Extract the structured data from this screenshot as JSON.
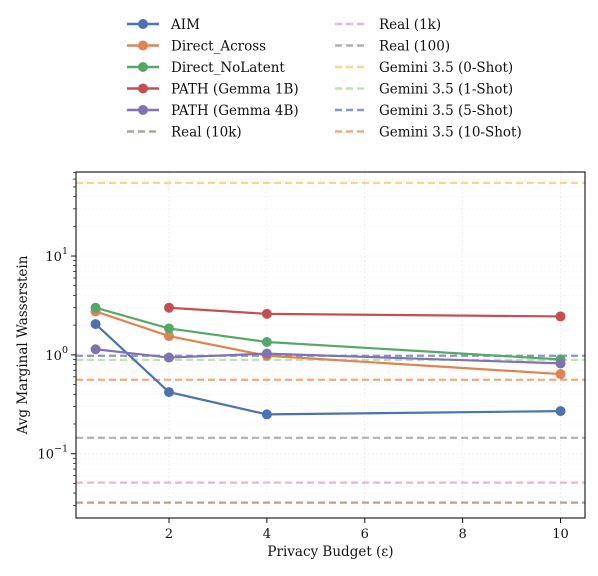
{
  "chart_data": {
    "type": "line",
    "title": "",
    "xlabel": "Privacy Budget (ε)",
    "ylabel": "Avg Marginal Wasserstein",
    "xlim": [
      0.1,
      10.5
    ],
    "ylim_log10": [
      -1.65,
      1.85
    ],
    "yscale": "log",
    "grid": true,
    "legend_position": "top-outside",
    "x_ticks": [
      2,
      4,
      6,
      8,
      10
    ],
    "x_tick_labels": [
      "2",
      "4",
      "6",
      "8",
      "10"
    ],
    "y_ticks_log10": [
      -1,
      0,
      1
    ],
    "series": [
      {
        "name": "AIM",
        "style": "line-marker",
        "color": "#4c72b0",
        "x": [
          0.5,
          2,
          4,
          10
        ],
        "y": [
          2.05,
          0.42,
          0.25,
          0.27
        ]
      },
      {
        "name": "Direct_Across",
        "style": "line-marker",
        "color": "#dd8452",
        "x": [
          0.5,
          2,
          4,
          10
        ],
        "y": [
          2.75,
          1.55,
          0.98,
          0.64
        ]
      },
      {
        "name": "Direct_NoLatent",
        "style": "line-marker",
        "color": "#55a868",
        "x": [
          0.5,
          2,
          4,
          10
        ],
        "y": [
          3.0,
          1.85,
          1.35,
          0.9
        ]
      },
      {
        "name": "PATH (Gemma 1B)",
        "style": "line-marker",
        "color": "#c44e52",
        "x": [
          2,
          4,
          10
        ],
        "y": [
          3.0,
          2.6,
          2.45
        ]
      },
      {
        "name": "PATH (Gemma 4B)",
        "style": "line-marker",
        "color": "#8172b3",
        "x": [
          0.5,
          2,
          4,
          10
        ],
        "y": [
          1.14,
          0.94,
          1.03,
          0.82
        ]
      },
      {
        "name": "Real (10k)",
        "style": "dashed",
        "color": "#b5a392",
        "y": 0.032
      },
      {
        "name": "Real (1k)",
        "style": "dashed",
        "color": "#e8b4d8",
        "y": 0.051
      },
      {
        "name": "Real (100)",
        "style": "dashed",
        "color": "#b0b0b0",
        "y": 0.145
      },
      {
        "name": "Gemini 3.5 (0-Shot)",
        "style": "dashed",
        "color": "#f9d58c",
        "y": 55
      },
      {
        "name": "Gemini 3.5 (1-Shot)",
        "style": "dashed",
        "color": "#b9e4b0",
        "y": 0.89
      },
      {
        "name": "Gemini 3.5 (5-Shot)",
        "style": "dashed",
        "color": "#8797c8",
        "y": 0.98
      },
      {
        "name": "Gemini 3.5 (10-Shot)",
        "style": "dashed",
        "color": "#eeaa84",
        "y": 0.56
      }
    ]
  }
}
